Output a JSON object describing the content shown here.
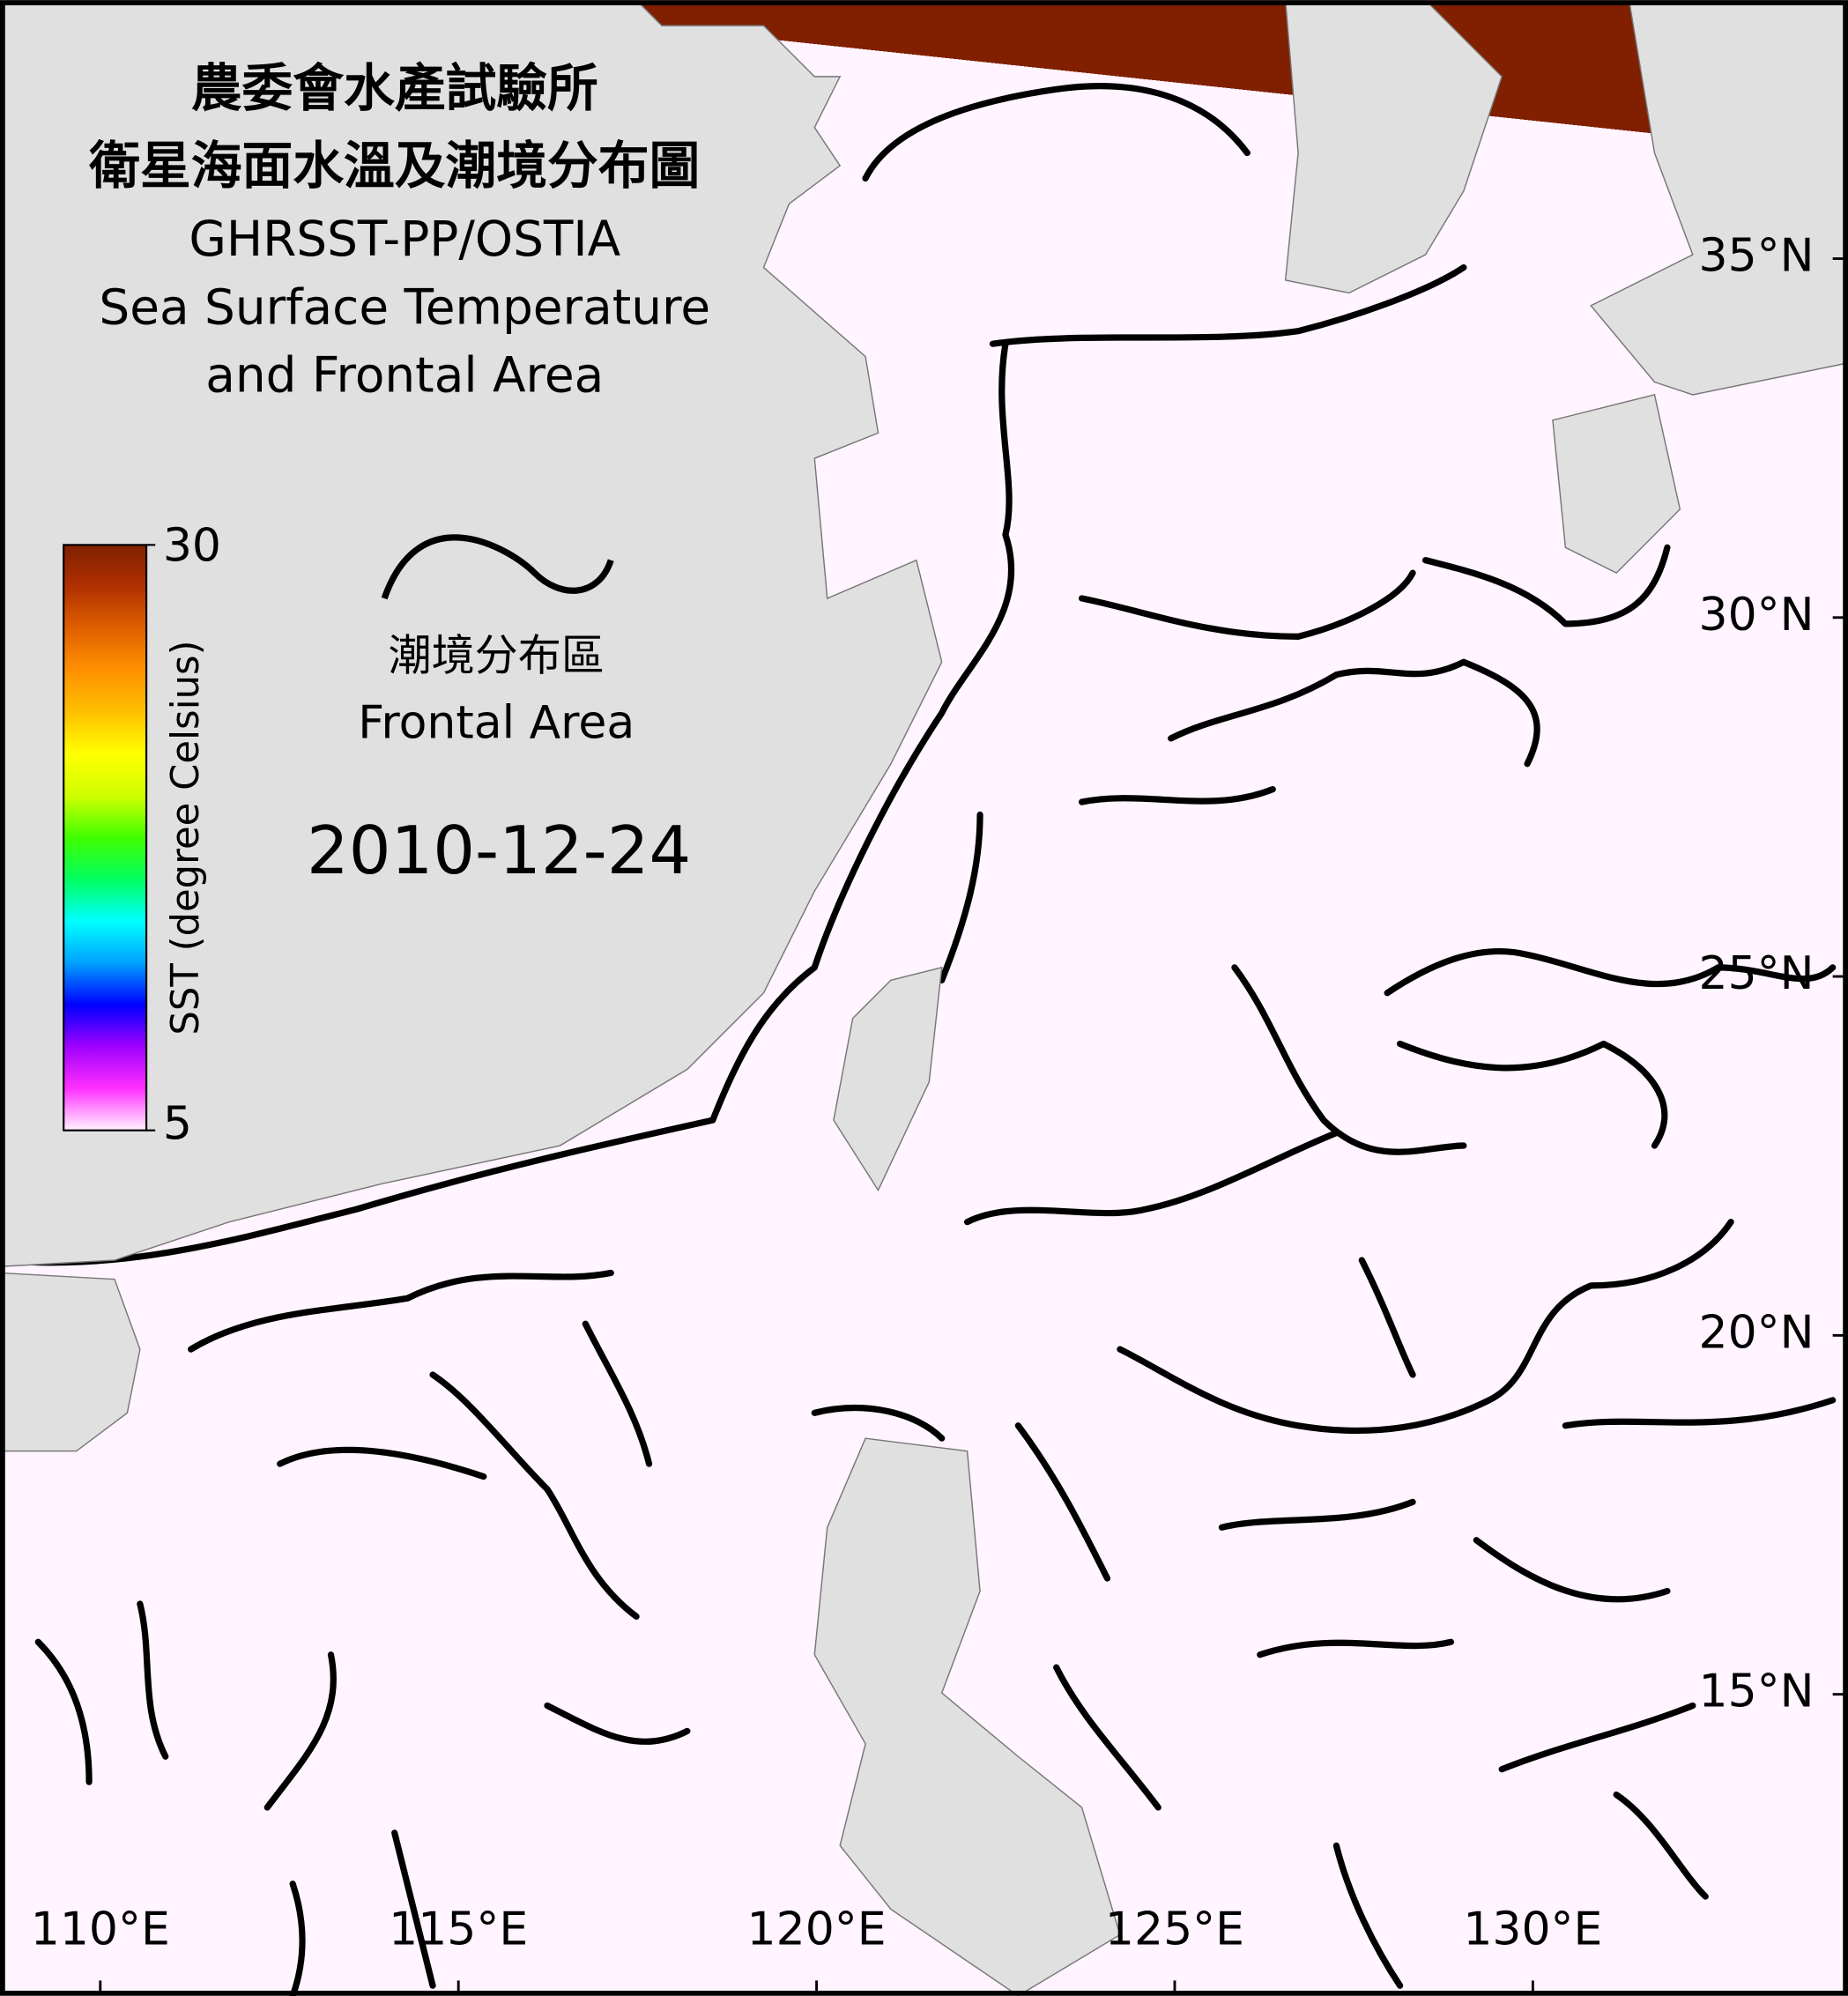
{
  "chart_data": {
    "type": "map",
    "title": [
      "農委會水產試驗所",
      "衛星海面水溫及潮境分布圖",
      "GHRSST-PP/OSTIA",
      "Sea Surface Temperature",
      "and Frontal Area"
    ],
    "date": "2010-12-24",
    "legend": {
      "label_zh": "潮境分布區",
      "label_en": "Frontal Area"
    },
    "colorbar": {
      "label": "SST (degree Celsius)",
      "lim": [
        5,
        30
      ],
      "ticks": [
        5,
        30
      ],
      "colors": [
        "#fff4ff",
        "#ff30ff",
        "#a000ff",
        "#0000ff",
        "#00a0ff",
        "#00ffff",
        "#00ff60",
        "#40ff00",
        "#d0ff00",
        "#ffff00",
        "#ffc000",
        "#ff9000",
        "#e06000",
        "#b03000",
        "#802000"
      ]
    },
    "xlim": [
      108.6,
      134.4
    ],
    "ylim": [
      10.8,
      38.6
    ],
    "xticks": [
      {
        "value": 110,
        "label": "110°E"
      },
      {
        "value": 115,
        "label": "115°E"
      },
      {
        "value": 120,
        "label": "120°E"
      },
      {
        "value": 125,
        "label": "125°E"
      },
      {
        "value": 130,
        "label": "130°E"
      }
    ],
    "yticks": [
      {
        "value": 15,
        "label": "15°N"
      },
      {
        "value": 20,
        "label": "20°N"
      },
      {
        "value": 25,
        "label": "25°N"
      },
      {
        "value": 30,
        "label": "30°N"
      },
      {
        "value": 35,
        "label": "35°N"
      }
    ]
  }
}
